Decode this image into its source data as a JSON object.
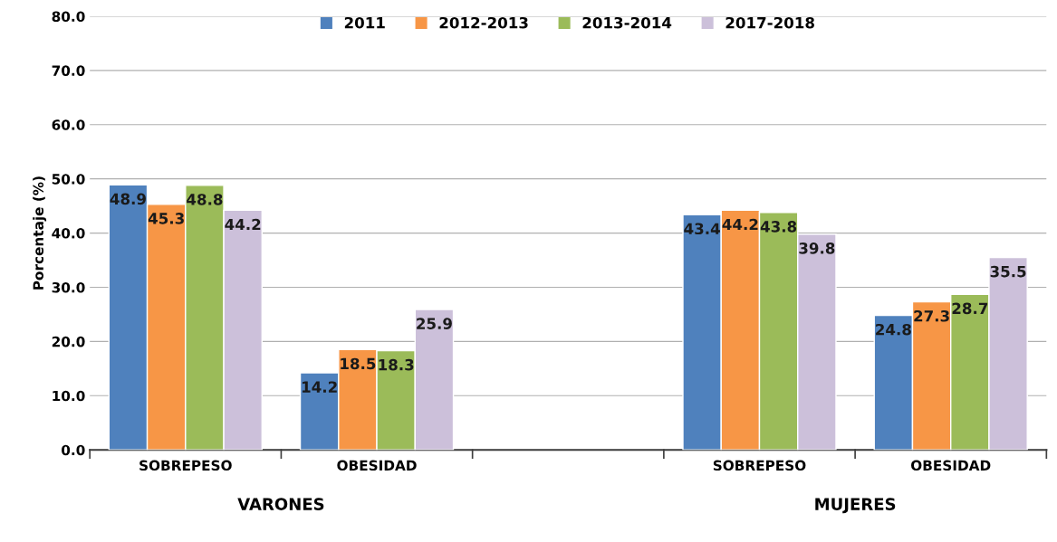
{
  "chart_data": {
    "type": "bar",
    "ylabel": "Porcentaje (%)",
    "categories": [
      "SOBREPESO",
      "OBESIDAD",
      null,
      "SOBREPESO",
      "OBESIDAD"
    ],
    "series": [
      {
        "name": "2011",
        "color": "#4f81bd",
        "values": [
          48.9,
          14.2,
          null,
          43.4,
          24.8
        ]
      },
      {
        "name": "2012-2013",
        "color": "#f79646",
        "values": [
          45.3,
          18.5,
          null,
          44.2,
          27.3
        ]
      },
      {
        "name": "2013-2014",
        "color": "#9bbb59",
        "values": [
          48.8,
          18.3,
          null,
          43.8,
          28.7
        ]
      },
      {
        "name": "2017-2018",
        "color": "#ccc0da",
        "values": [
          44.2,
          25.9,
          null,
          39.8,
          35.5
        ]
      }
    ],
    "ylim": [
      0,
      80
    ],
    "yticks": [
      {
        "value": 0,
        "label": "0.0"
      },
      {
        "value": 10,
        "label": "10.0"
      },
      {
        "value": 20,
        "label": "20.0"
      },
      {
        "value": 30,
        "label": "30.0"
      },
      {
        "value": 40,
        "label": "40.0"
      },
      {
        "value": 50,
        "label": "50.0"
      },
      {
        "value": 60,
        "label": "60.0"
      },
      {
        "value": 70,
        "label": "70.0"
      },
      {
        "value": 80,
        "label": "80.0"
      }
    ],
    "grid": "y",
    "legend": "top",
    "data_labels": true,
    "annotations": [
      "VARONES",
      "MUJERES"
    ]
  }
}
